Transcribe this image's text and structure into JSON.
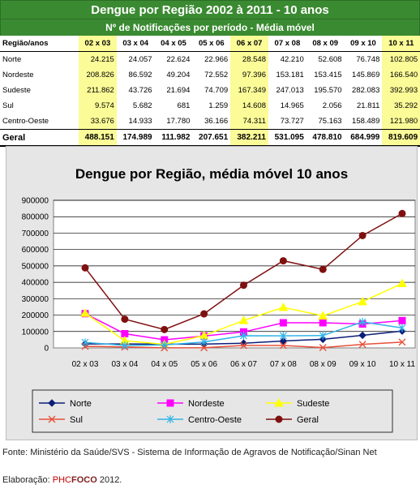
{
  "table": {
    "title": "Dengue por Região 2002 à 2011 - 10 anos",
    "subtitle": "Nº de Notificações por período - Média móvel",
    "header_label": "Região/anos",
    "periods": [
      "02 x 03",
      "03 x 04",
      "04 x 05",
      "05 x 06",
      "06 x 07",
      "07 x 08",
      "08 x 09",
      "09 x 10",
      "10 x 11"
    ],
    "rows": [
      {
        "region": "Norte",
        "values": [
          "24.215",
          "24.057",
          "22.624",
          "22.966",
          "28.548",
          "42.210",
          "52.608",
          "76.748",
          "102.805"
        ]
      },
      {
        "region": "Nordeste",
        "values": [
          "208.826",
          "86.592",
          "49.204",
          "72.552",
          "97.396",
          "153.181",
          "153.415",
          "145.869",
          "166.540"
        ]
      },
      {
        "region": "Sudeste",
        "values": [
          "211.862",
          "43.726",
          "21.694",
          "74.709",
          "167.349",
          "247.013",
          "195.570",
          "282.083",
          "392.993"
        ]
      },
      {
        "region": "Sul",
        "values": [
          "9.574",
          "5.682",
          "681",
          "1.259",
          "14.608",
          "14.965",
          "2.056",
          "21.811",
          "35.292"
        ]
      },
      {
        "region": "Centro-Oeste",
        "values": [
          "33.676",
          "14.933",
          "17.780",
          "36.166",
          "74.311",
          "73.727",
          "75.163",
          "158.489",
          "121.980"
        ]
      }
    ],
    "total": {
      "region": "Geral",
      "values": [
        "488.151",
        "174.989",
        "111.982",
        "207.651",
        "382.211",
        "531.095",
        "478.810",
        "684.999",
        "819.609"
      ]
    }
  },
  "chart_data": {
    "type": "line",
    "title": "Dengue por Região, média móvel 10 anos",
    "categories": [
      "02 x 03",
      "03 x 04",
      "04 x 05",
      "05 x 06",
      "06 x 07",
      "07 x 08",
      "08 x 09",
      "09 x 10",
      "10 x 11"
    ],
    "ylim": [
      0,
      900000
    ],
    "yticks": [
      0,
      100000,
      200000,
      300000,
      400000,
      500000,
      600000,
      700000,
      800000,
      900000
    ],
    "grid": true,
    "legend_position": "bottom",
    "series": [
      {
        "name": "Norte",
        "color": "#0a1d78",
        "marker": "diamond",
        "values": [
          24215,
          24057,
          22624,
          22966,
          28548,
          42210,
          52608,
          76748,
          102805
        ]
      },
      {
        "name": "Nordeste",
        "color": "#ff00ff",
        "marker": "square",
        "values": [
          208826,
          86592,
          49204,
          72552,
          97396,
          153181,
          153415,
          145869,
          166540
        ]
      },
      {
        "name": "Sudeste",
        "color": "#ffff00",
        "marker": "triangle",
        "values": [
          211862,
          43726,
          21694,
          74709,
          167349,
          247013,
          195570,
          282083,
          392993
        ]
      },
      {
        "name": "Sul",
        "color": "#e8503a",
        "marker": "x",
        "values": [
          9574,
          5682,
          681,
          1259,
          14608,
          14965,
          2056,
          21811,
          35292
        ]
      },
      {
        "name": "Centro-Oeste",
        "color": "#33b4e6",
        "marker": "star",
        "values": [
          33676,
          14933,
          17780,
          36166,
          74311,
          73727,
          75163,
          158489,
          121980
        ]
      },
      {
        "name": "Geral",
        "color": "#7f1010",
        "marker": "circle",
        "values": [
          488151,
          174989,
          111982,
          207651,
          382211,
          531095,
          478810,
          684999,
          819609
        ]
      }
    ]
  },
  "footer": {
    "source": "Fonte: Ministério da Saúde/SVS - Sistema de Informação de Agravos de Notificação/Sinan Net",
    "credit_prefix": "Elaboração: ",
    "credit_brand_a": "PHC",
    "credit_brand_b": "FOCO",
    "credit_suffix": " 2012."
  }
}
